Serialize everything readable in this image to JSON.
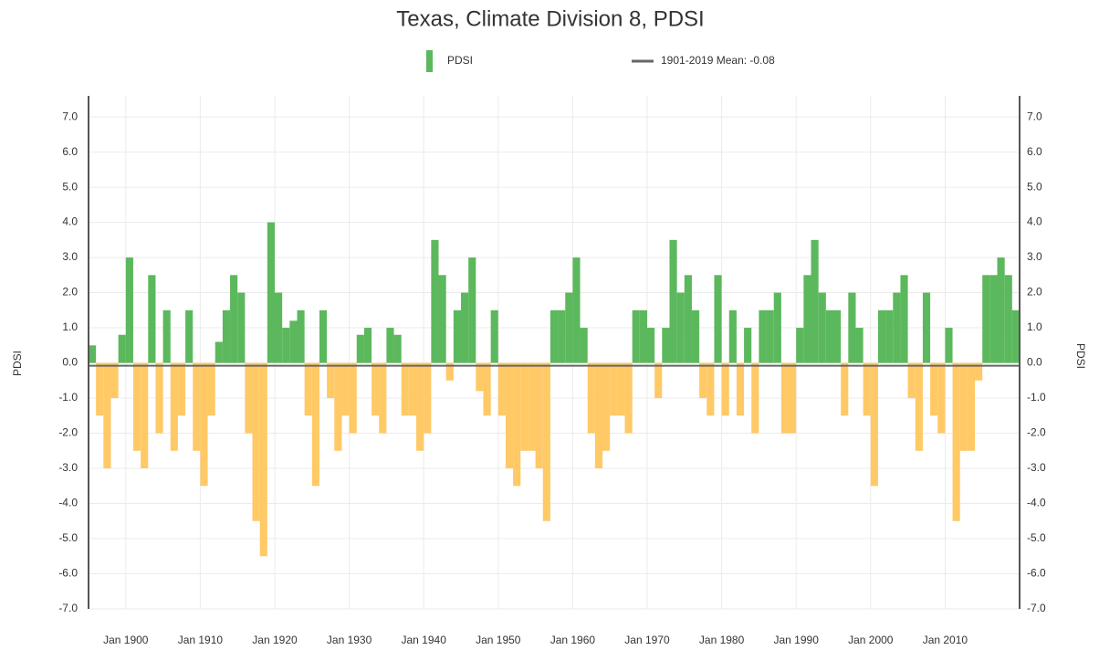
{
  "chart_data": {
    "type": "bar",
    "title": "Texas, Climate Division 8, PDSI",
    "ylabel": "PDSI",
    "y2label": "PDSI",
    "x": [
      1895,
      1896,
      1897,
      1898,
      1899,
      1900,
      1901,
      1902,
      1903,
      1904,
      1905,
      1906,
      1907,
      1908,
      1909,
      1910,
      1911,
      1912,
      1913,
      1914,
      1915,
      1916,
      1917,
      1918,
      1919,
      1920,
      1921,
      1922,
      1923,
      1924,
      1925,
      1926,
      1927,
      1928,
      1929,
      1930,
      1931,
      1932,
      1933,
      1934,
      1935,
      1936,
      1937,
      1938,
      1939,
      1940,
      1941,
      1942,
      1943,
      1944,
      1945,
      1946,
      1947,
      1948,
      1949,
      1950,
      1951,
      1952,
      1953,
      1954,
      1955,
      1956,
      1957,
      1958,
      1959,
      1960,
      1961,
      1962,
      1963,
      1964,
      1965,
      1966,
      1967,
      1968,
      1969,
      1970,
      1971,
      1972,
      1973,
      1974,
      1975,
      1976,
      1977,
      1978,
      1979,
      1980,
      1981,
      1982,
      1983,
      1984,
      1985,
      1986,
      1987,
      1988,
      1989,
      1990,
      1991,
      1992,
      1993,
      1994,
      1995,
      1996,
      1997,
      1998,
      1999,
      2000,
      2001,
      2002,
      2003,
      2004,
      2005,
      2006,
      2007,
      2008,
      2009,
      2010,
      2011,
      2012,
      2013,
      2014,
      2015,
      2016,
      2017,
      2018,
      2019
    ],
    "series": [
      {
        "name": "PDSI",
        "color": "#5cb85c",
        "negative_color": "#ffc966",
        "values": [
          0.5,
          -1.5,
          -3,
          -1,
          0.8,
          3,
          -2.5,
          -3,
          2.5,
          -2,
          1.5,
          -2.5,
          -1.5,
          1.5,
          -2.5,
          -3.5,
          -1.5,
          0.6,
          1.5,
          2.5,
          2,
          -2,
          -4.5,
          -5.5,
          4,
          2,
          1,
          1.2,
          1.5,
          -1.5,
          -3.5,
          1.5,
          -1,
          -2.5,
          -1.5,
          -2,
          0.8,
          1,
          -1.5,
          -2,
          1,
          0.8,
          -1.5,
          -1.5,
          -2.5,
          -2,
          3.5,
          2.5,
          -0.5,
          1.5,
          2,
          3,
          -0.8,
          -1.5,
          1.5,
          -1.5,
          -3,
          -3.5,
          -2.5,
          -2.5,
          -3,
          -4.5,
          1.5,
          1.5,
          2,
          3,
          1,
          -2,
          -3,
          -2.5,
          -1.5,
          -1.5,
          -2,
          1.5,
          1.5,
          1,
          -1,
          1,
          3.5,
          2,
          2.5,
          1.5,
          -1,
          -1.5,
          2.5,
          -1.5,
          1.5,
          -1.5,
          1,
          -2,
          1.5,
          1.5,
          2,
          -2,
          -2,
          1,
          2.5,
          3.5,
          2,
          1.5,
          1.5,
          -1.5,
          2,
          1,
          -1.5,
          -3.5,
          1.5,
          1.5,
          2,
          2.5,
          -1,
          -2.5,
          2,
          -1.5,
          -2,
          1,
          -4.5,
          -2.5,
          -2.5,
          -0.5,
          2.5,
          2.5,
          3,
          2.5,
          1.5
        ]
      },
      {
        "name": "1901-2019 Mean: -0.08",
        "color": "#666666",
        "value": -0.08
      }
    ],
    "xlim": [
      1895,
      2020
    ],
    "xticks": [
      {
        "value": 1900,
        "label": "Jan 1900"
      },
      {
        "value": 1910,
        "label": "Jan 1910"
      },
      {
        "value": 1920,
        "label": "Jan 1920"
      },
      {
        "value": 1930,
        "label": "Jan 1930"
      },
      {
        "value": 1940,
        "label": "Jan 1940"
      },
      {
        "value": 1950,
        "label": "Jan 1950"
      },
      {
        "value": 1960,
        "label": "Jan 1960"
      },
      {
        "value": 1970,
        "label": "Jan 1970"
      },
      {
        "value": 1980,
        "label": "Jan 1980"
      },
      {
        "value": 1990,
        "label": "Jan 1990"
      },
      {
        "value": 2000,
        "label": "Jan 2000"
      },
      {
        "value": 2010,
        "label": "Jan 2010"
      }
    ],
    "ylim": [
      -7,
      7.6
    ],
    "yticks": [
      {
        "value": 7,
        "label": "7.0"
      },
      {
        "value": 6,
        "label": "6.0"
      },
      {
        "value": 5,
        "label": "5.0"
      },
      {
        "value": 4,
        "label": "4.0"
      },
      {
        "value": 3,
        "label": "3.0"
      },
      {
        "value": 2,
        "label": "2.0"
      },
      {
        "value": 1,
        "label": "1.0"
      },
      {
        "value": 0,
        "label": "0.0"
      },
      {
        "value": -1,
        "label": "-1.0"
      },
      {
        "value": -2,
        "label": "-2.0"
      },
      {
        "value": -3,
        "label": "-3.0"
      },
      {
        "value": -4,
        "label": "-4.0"
      },
      {
        "value": -5,
        "label": "-5.0"
      },
      {
        "value": -6,
        "label": "-6.0"
      },
      {
        "value": -7,
        "label": "-7.0"
      }
    ],
    "grid": true
  }
}
